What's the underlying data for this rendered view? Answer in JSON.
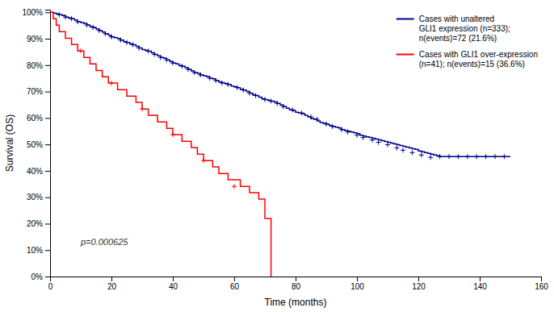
{
  "chart_data": {
    "type": "line",
    "xlabel": "Time (months)",
    "ylabel": "Survival (OS)",
    "xlim": [
      0,
      160
    ],
    "ylim": [
      0,
      1.01
    ],
    "xticks": [
      0,
      20,
      40,
      60,
      80,
      100,
      120,
      140,
      160
    ],
    "yticks": [
      {
        "value": 0.0,
        "label": "0%"
      },
      {
        "value": 0.1,
        "label": "10%"
      },
      {
        "value": 0.2,
        "label": "20%"
      },
      {
        "value": 0.3,
        "label": "30%"
      },
      {
        "value": 0.4,
        "label": "40%"
      },
      {
        "value": 0.5,
        "label": "50%"
      },
      {
        "value": 0.6,
        "label": "60%"
      },
      {
        "value": 0.7,
        "label": "70%"
      },
      {
        "value": 0.8,
        "label": "80%"
      },
      {
        "value": 0.9,
        "label": "90%"
      },
      {
        "value": 1.0,
        "label": "100%"
      }
    ],
    "grid": false,
    "legend": "upper right",
    "annotations": [
      {
        "text": "p=0.000625",
        "x": 10,
        "y": 0.12
      }
    ],
    "series": [
      {
        "name": "Cases with unaltered\nGLI1 expression (n=333);\nn(events)=72 (21.6%)",
        "type": "step",
        "color": "#00008B",
        "x": [
          0,
          1,
          2,
          3,
          4,
          5,
          6,
          7,
          8,
          9,
          10,
          11,
          12,
          13,
          14,
          15,
          16,
          17,
          18,
          19,
          20,
          21,
          22,
          23,
          24,
          25,
          26,
          27,
          28,
          29,
          30,
          31,
          32,
          33,
          34,
          35,
          36,
          37,
          38,
          39,
          40,
          41,
          42,
          43,
          44,
          45,
          46,
          47,
          48,
          49,
          50,
          51,
          52,
          53,
          54,
          55,
          56,
          57,
          58,
          59,
          60,
          61,
          62,
          63,
          64,
          65,
          66,
          67,
          68,
          69,
          70,
          71,
          72,
          73,
          74,
          75,
          76,
          77,
          78,
          79,
          80,
          81,
          82,
          83,
          84,
          85,
          86,
          87,
          88,
          89,
          90,
          91,
          92,
          93,
          94,
          95,
          96,
          97,
          98,
          99,
          100,
          101,
          102,
          103,
          104,
          105,
          106,
          107,
          108,
          109,
          110,
          111,
          112,
          113,
          114,
          115,
          116,
          117,
          118,
          119,
          120,
          121,
          122,
          123,
          124,
          125,
          126,
          127,
          128,
          129,
          130,
          131,
          132,
          133,
          134,
          135,
          136,
          137,
          138,
          139,
          140,
          141,
          142,
          143,
          144,
          145,
          146,
          147,
          148,
          149,
          150
        ],
        "values": [
          1.0,
          0.997,
          0.994,
          0.991,
          0.988,
          0.982,
          0.979,
          0.976,
          0.97,
          0.964,
          0.961,
          0.958,
          0.952,
          0.946,
          0.943,
          0.937,
          0.931,
          0.925,
          0.919,
          0.913,
          0.907,
          0.904,
          0.901,
          0.895,
          0.889,
          0.886,
          0.88,
          0.877,
          0.871,
          0.865,
          0.859,
          0.856,
          0.853,
          0.847,
          0.841,
          0.835,
          0.829,
          0.826,
          0.82,
          0.814,
          0.808,
          0.805,
          0.799,
          0.796,
          0.79,
          0.784,
          0.778,
          0.772,
          0.769,
          0.763,
          0.76,
          0.757,
          0.751,
          0.748,
          0.742,
          0.736,
          0.733,
          0.73,
          0.727,
          0.721,
          0.718,
          0.715,
          0.709,
          0.706,
          0.7,
          0.694,
          0.688,
          0.685,
          0.679,
          0.673,
          0.67,
          0.667,
          0.664,
          0.661,
          0.655,
          0.649,
          0.643,
          0.637,
          0.631,
          0.628,
          0.622,
          0.619,
          0.616,
          0.61,
          0.604,
          0.598,
          0.595,
          0.589,
          0.583,
          0.58,
          0.577,
          0.571,
          0.568,
          0.565,
          0.562,
          0.556,
          0.553,
          0.55,
          0.547,
          0.544,
          0.541,
          0.535,
          0.532,
          0.529,
          0.526,
          0.523,
          0.52,
          0.517,
          0.514,
          0.511,
          0.508,
          0.505,
          0.502,
          0.499,
          0.496,
          0.493,
          0.49,
          0.487,
          0.484,
          0.481,
          0.475,
          0.472,
          0.469,
          0.466,
          0.463,
          0.46,
          0.457,
          0.454,
          0.454,
          0.454,
          0.454,
          0.454,
          0.454,
          0.454,
          0.454,
          0.454,
          0.454,
          0.454,
          0.454,
          0.454,
          0.454,
          0.454,
          0.454,
          0.454,
          0.454,
          0.454,
          0.454,
          0.454,
          0.454,
          0.454,
          0.454
        ]
      },
      {
        "name": "Cases with GLI1 over-expression\n(n=41); n(events)=15 (36.6%)",
        "type": "step",
        "color": "#FF0000",
        "x": [
          0,
          1,
          2,
          3,
          5,
          7,
          9,
          11,
          13,
          15,
          17,
          19,
          22,
          25,
          28,
          30,
          32,
          35,
          38,
          40,
          43,
          46,
          48,
          50,
          53,
          55,
          58,
          62,
          65,
          68,
          70,
          72
        ],
        "values": [
          1.0,
          0.976,
          0.951,
          0.927,
          0.902,
          0.878,
          0.854,
          0.829,
          0.805,
          0.78,
          0.756,
          0.732,
          0.707,
          0.683,
          0.659,
          0.634,
          0.61,
          0.585,
          0.561,
          0.537,
          0.512,
          0.488,
          0.463,
          0.439,
          0.415,
          0.39,
          0.366,
          0.341,
          0.317,
          0.293,
          0.22,
          0.0
        ]
      },
      {
        "type": "scatter",
        "marker": "plus",
        "color": "#00008B",
        "x": [
          3,
          5,
          7,
          9,
          12,
          14,
          16,
          18,
          20,
          23,
          25,
          27,
          29,
          32,
          34,
          36,
          38,
          40,
          43,
          45,
          47,
          49,
          52,
          54,
          56,
          58,
          61,
          63,
          65,
          67,
          70,
          72,
          74,
          76,
          79,
          82,
          85,
          87,
          90,
          92,
          95,
          97,
          100,
          102,
          105,
          107,
          110,
          113,
          115,
          118,
          121,
          124,
          127,
          130,
          133,
          136,
          139,
          142,
          145,
          148
        ],
        "values": [
          0.991,
          0.982,
          0.976,
          0.964,
          0.952,
          0.943,
          0.931,
          0.919,
          0.907,
          0.895,
          0.886,
          0.877,
          0.865,
          0.853,
          0.841,
          0.829,
          0.82,
          0.808,
          0.796,
          0.784,
          0.772,
          0.763,
          0.751,
          0.742,
          0.733,
          0.727,
          0.715,
          0.706,
          0.694,
          0.685,
          0.67,
          0.664,
          0.655,
          0.643,
          0.631,
          0.619,
          0.604,
          0.595,
          0.577,
          0.568,
          0.556,
          0.547,
          0.535,
          0.526,
          0.517,
          0.508,
          0.499,
          0.487,
          0.478,
          0.469,
          0.46,
          0.451,
          0.454,
          0.454,
          0.454,
          0.454,
          0.454,
          0.454,
          0.454,
          0.454
        ]
      },
      {
        "type": "scatter",
        "marker": "plus",
        "color": "#FF0000",
        "x": [
          10,
          20,
          30,
          40,
          50,
          60
        ],
        "values": [
          0.854,
          0.732,
          0.634,
          0.537,
          0.439,
          0.341
        ]
      }
    ]
  }
}
